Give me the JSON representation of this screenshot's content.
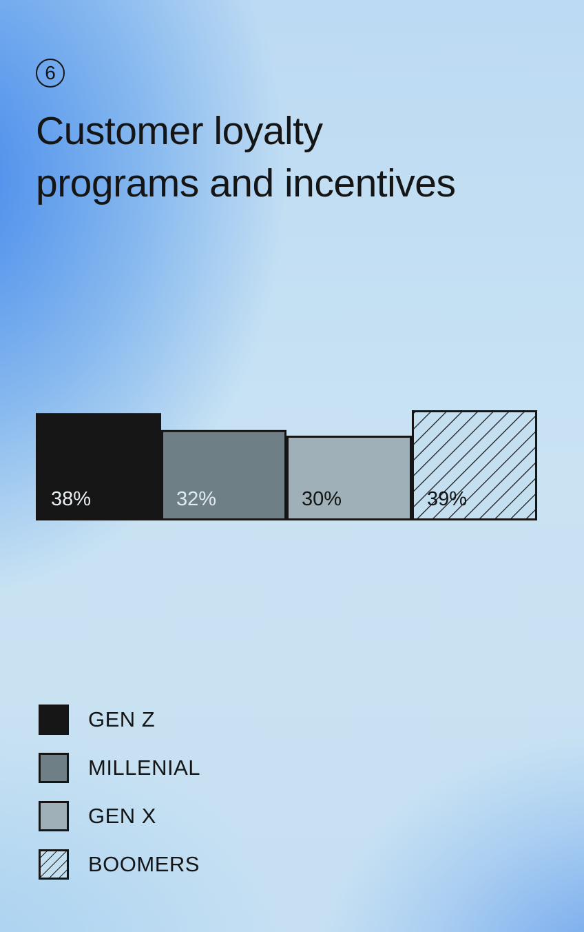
{
  "header": {
    "number": "6",
    "title_line1": "Customer loyalty",
    "title_line2": "programs and incentives"
  },
  "chart_data": {
    "type": "bar",
    "categories": [
      "GEN Z",
      "MILLENIAL",
      "GEN X",
      "BOOMERS"
    ],
    "values": [
      38,
      32,
      30,
      39
    ],
    "labels": [
      "38%",
      "32%",
      "30%",
      "39%"
    ],
    "fills": [
      "#161616",
      "#6f7f86",
      "#9fb0b8",
      "hatch"
    ],
    "label_colors": [
      "#e8eef2",
      "#dfeaf0",
      "#151515",
      "#151515"
    ],
    "grid": false,
    "legend_position": "bottom-left"
  },
  "legend": {
    "items": [
      {
        "label": "GEN Z",
        "fill": "#161616"
      },
      {
        "label": "MILLENIAL",
        "fill": "#6f7f86"
      },
      {
        "label": "GEN X",
        "fill": "#9fb0b8"
      },
      {
        "label": "BOOMERS",
        "fill": "hatch"
      }
    ]
  }
}
